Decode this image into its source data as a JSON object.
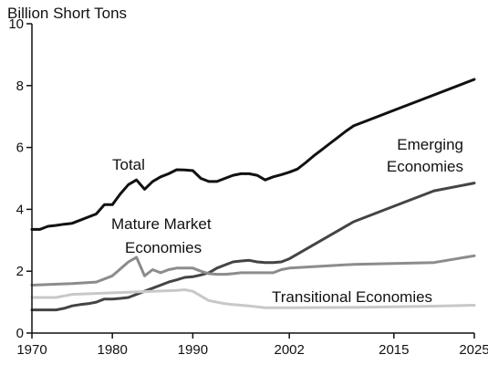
{
  "chart_data": {
    "type": "line",
    "title": "",
    "ylabel": "Billion Short Tons",
    "xlabel": "",
    "xlim": [
      1970,
      2025
    ],
    "ylim": [
      0,
      10
    ],
    "x_ticks": [
      "1970",
      "1980",
      "1990",
      "2002",
      "2015",
      "2025"
    ],
    "y_ticks": [
      "0",
      "2",
      "4",
      "6",
      "8",
      "10"
    ],
    "grid": false,
    "legend": "none",
    "series": [
      {
        "name": "Total",
        "label_lines": [
          "Total"
        ],
        "color": "#111111",
        "x": [
          1970,
          1971,
          1972,
          1973,
          1974,
          1975,
          1976,
          1977,
          1978,
          1979,
          1980,
          1981,
          1982,
          1983,
          1984,
          1985,
          1986,
          1987,
          1988,
          1989,
          1990,
          1991,
          1992,
          1993,
          1994,
          1995,
          1996,
          1997,
          1998,
          1999,
          2000,
          2001,
          2002,
          2003,
          2004,
          2005,
          2006,
          2007,
          2008,
          2009,
          2010,
          2015,
          2020,
          2025
        ],
        "y": [
          3.35,
          3.35,
          3.45,
          3.48,
          3.52,
          3.55,
          3.65,
          3.75,
          3.85,
          4.15,
          4.15,
          4.5,
          4.8,
          4.95,
          4.65,
          4.9,
          5.05,
          5.15,
          5.28,
          5.27,
          5.25,
          5.0,
          4.9,
          4.9,
          5.0,
          5.1,
          5.15,
          5.15,
          5.1,
          4.95,
          5.05,
          5.12,
          5.2,
          5.3,
          5.5,
          5.72,
          5.92,
          6.12,
          6.32,
          6.52,
          6.7,
          7.2,
          7.7,
          8.2
        ]
      },
      {
        "name": "Emerging Economies",
        "label_lines": [
          "Emerging",
          "Economies"
        ],
        "color": "#444444",
        "x": [
          1970,
          1971,
          1972,
          1973,
          1974,
          1975,
          1976,
          1977,
          1978,
          1979,
          1980,
          1981,
          1982,
          1983,
          1984,
          1985,
          1986,
          1987,
          1988,
          1989,
          1990,
          1991,
          1992,
          1993,
          1994,
          1995,
          1996,
          1997,
          1998,
          1999,
          2000,
          2001,
          2002,
          2010,
          2015,
          2020,
          2025
        ],
        "y": [
          0.75,
          0.75,
          0.75,
          0.75,
          0.8,
          0.88,
          0.92,
          0.95,
          1.0,
          1.1,
          1.1,
          1.12,
          1.15,
          1.25,
          1.35,
          1.45,
          1.55,
          1.65,
          1.72,
          1.8,
          1.82,
          1.88,
          1.95,
          2.1,
          2.2,
          2.3,
          2.33,
          2.35,
          2.3,
          2.28,
          2.28,
          2.3,
          2.4,
          3.6,
          4.1,
          4.6,
          4.85
        ]
      },
      {
        "name": "Mature Market Economies",
        "label_lines": [
          "Mature Market",
          "Economies"
        ],
        "color": "#8c8c8c",
        "x": [
          1970,
          1975,
          1978,
          1980,
          1982,
          1983,
          1984,
          1985,
          1986,
          1987,
          1988,
          1989,
          1990,
          1991,
          1992,
          1993,
          1994,
          1995,
          1996,
          1997,
          1998,
          1999,
          2000,
          2001,
          2002,
          2010,
          2015,
          2020,
          2025
        ],
        "y": [
          1.55,
          1.6,
          1.65,
          1.85,
          2.3,
          2.45,
          1.85,
          2.05,
          1.95,
          2.05,
          2.1,
          2.1,
          2.1,
          2.0,
          1.92,
          1.9,
          1.9,
          1.92,
          1.95,
          1.95,
          1.95,
          1.95,
          1.95,
          2.05,
          2.1,
          2.22,
          2.25,
          2.28,
          2.5
        ]
      },
      {
        "name": "Transitional Economies",
        "label_lines": [
          "Transitional Economies"
        ],
        "color": "#c8c8c8",
        "x": [
          1970,
          1973,
          1974,
          1975,
          1980,
          1985,
          1988,
          1989,
          1990,
          1991,
          1992,
          1993,
          1994,
          1995,
          1996,
          1997,
          1998,
          1999,
          2000,
          2001,
          2002,
          2010,
          2015,
          2020,
          2025
        ],
        "y": [
          1.15,
          1.15,
          1.2,
          1.25,
          1.3,
          1.35,
          1.38,
          1.4,
          1.35,
          1.2,
          1.05,
          1.0,
          0.95,
          0.92,
          0.9,
          0.88,
          0.85,
          0.82,
          0.82,
          0.82,
          0.82,
          0.83,
          0.85,
          0.87,
          0.9
        ]
      }
    ]
  }
}
